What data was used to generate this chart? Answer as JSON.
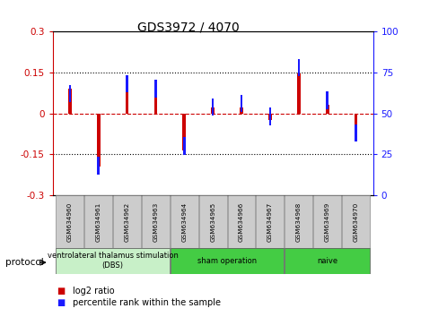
{
  "title": "GDS3972 / 4070",
  "samples": [
    "GSM634960",
    "GSM634961",
    "GSM634962",
    "GSM634963",
    "GSM634964",
    "GSM634965",
    "GSM634966",
    "GSM634967",
    "GSM634968",
    "GSM634969",
    "GSM634970"
  ],
  "log2_ratio": [
    0.09,
    -0.195,
    0.12,
    0.1,
    -0.135,
    0.02,
    0.02,
    -0.025,
    0.148,
    0.03,
    -0.04
  ],
  "percentile_rank": [
    62,
    18,
    68,
    65,
    30,
    54,
    56,
    48,
    78,
    58,
    38
  ],
  "ylim_left": [
    -0.3,
    0.3
  ],
  "ylim_right": [
    0,
    100
  ],
  "yticks_left": [
    -0.3,
    -0.15,
    0,
    0.15,
    0.3
  ],
  "yticks_right": [
    0,
    25,
    50,
    75,
    100
  ],
  "bar_width": 0.12,
  "marker_size": 0.08,
  "red_color": "#cc0000",
  "blue_color": "#1a1aff",
  "protocol_label": "protocol",
  "legend_red": "log2 ratio",
  "legend_blue": "percentile rank within the sample",
  "dotted_lines": [
    -0.15,
    0.15
  ],
  "groups": [
    {
      "label": "ventrolateral thalamus stimulation\n(DBS)",
      "indices": [
        0,
        1,
        2,
        3
      ],
      "color": "#c8f0c8"
    },
    {
      "label": "sham operation",
      "indices": [
        4,
        5,
        6,
        7
      ],
      "color": "#44cc44"
    },
    {
      "label": "naive",
      "indices": [
        8,
        9,
        10
      ],
      "color": "#44cc44"
    }
  ],
  "sample_box_color": "#cccccc",
  "bgcolor": "white"
}
